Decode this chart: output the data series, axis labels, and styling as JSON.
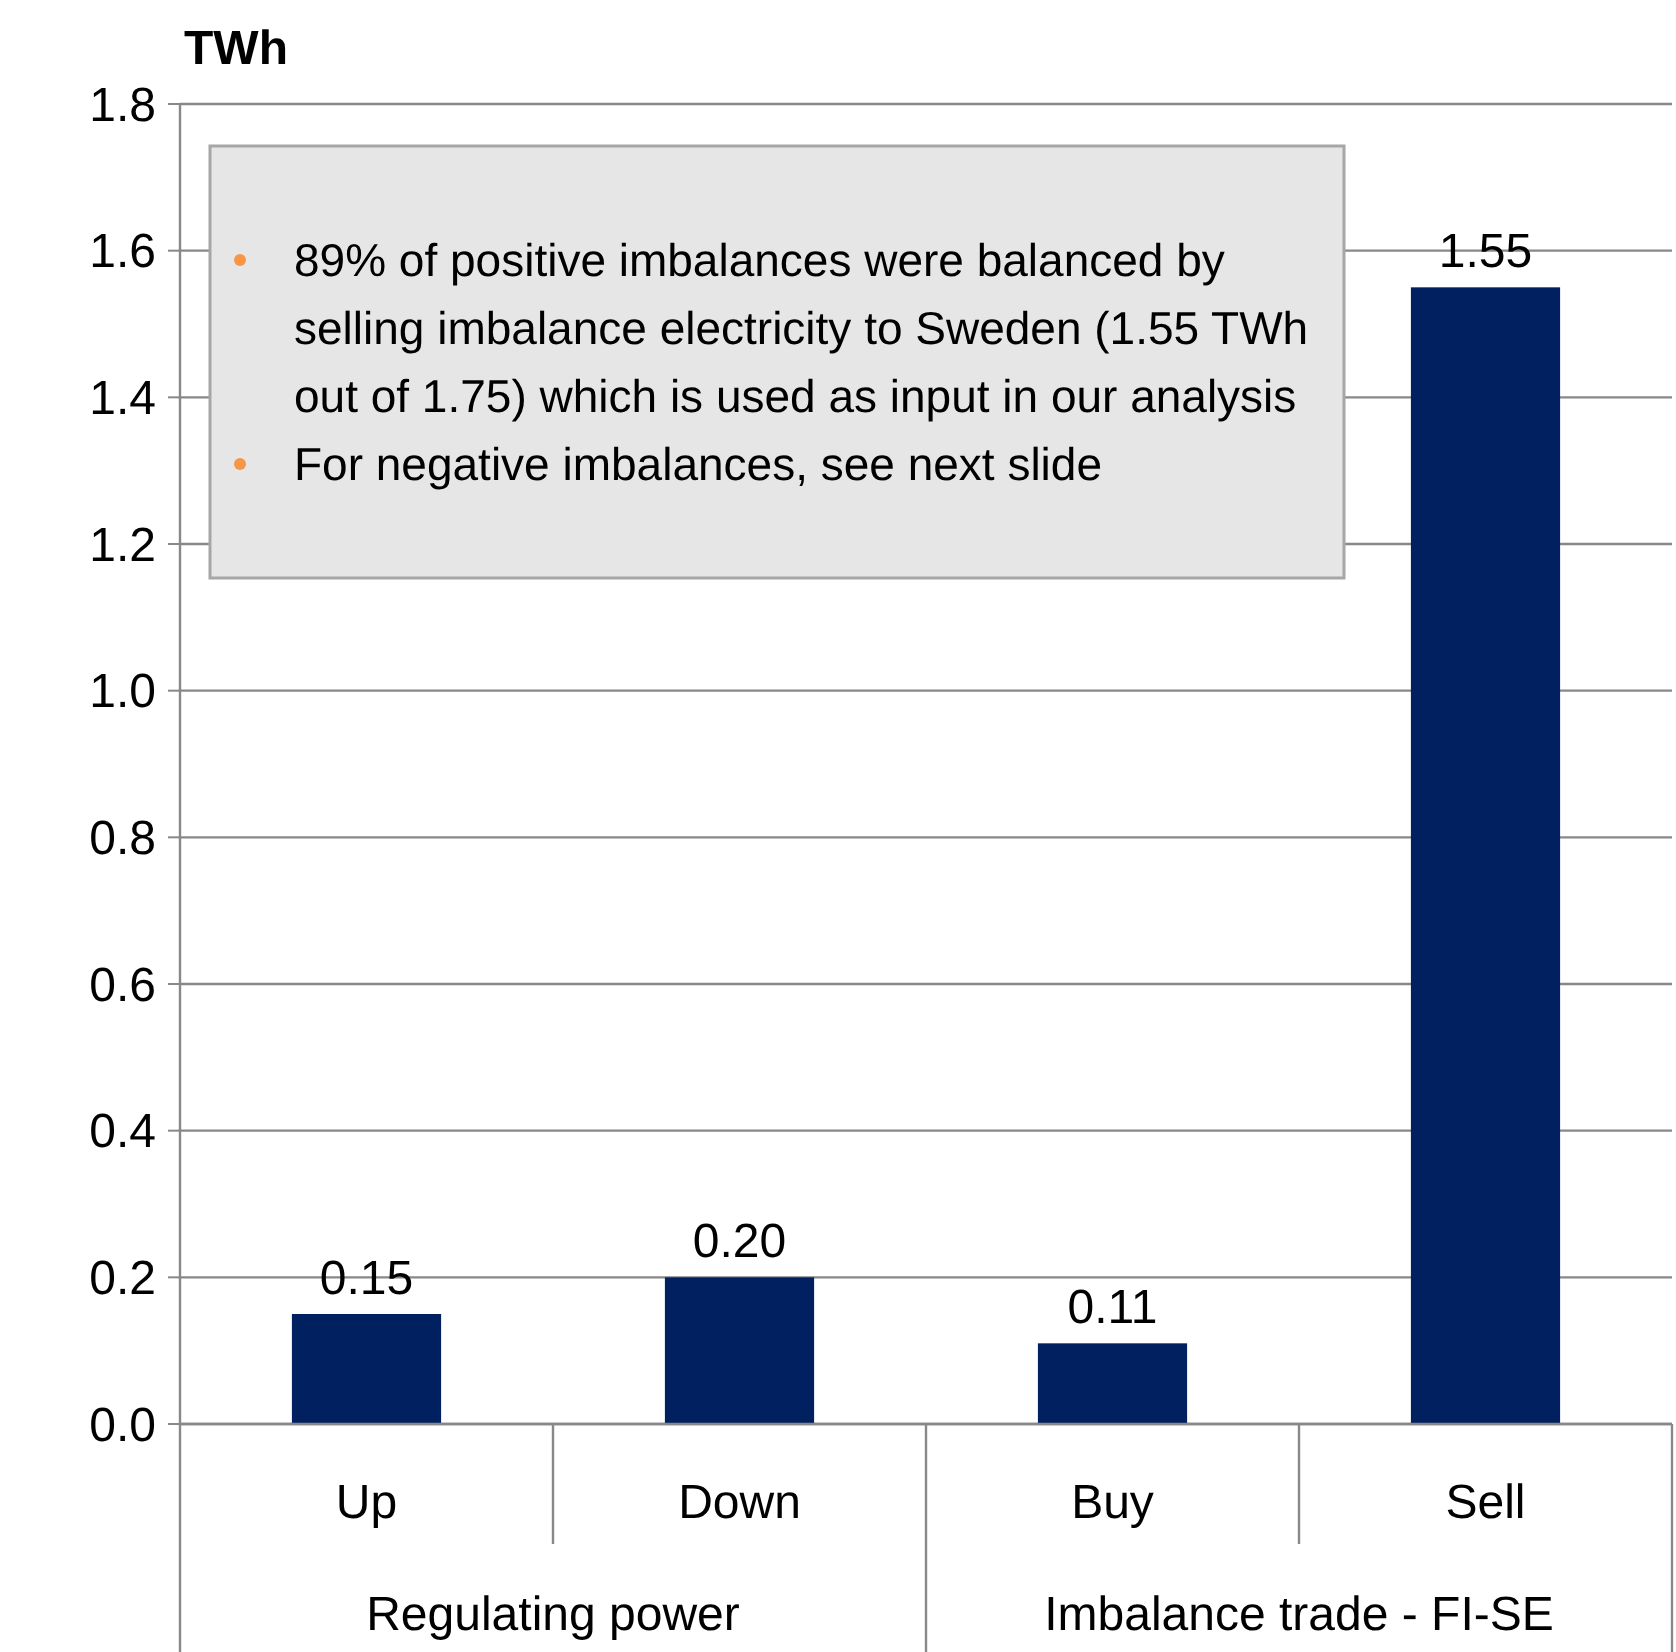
{
  "chart_data": {
    "type": "bar",
    "ylabel": "TWh",
    "categories": [
      "Up",
      "Down",
      "Buy",
      "Sell"
    ],
    "values": [
      0.15,
      0.2,
      0.11,
      1.55
    ],
    "value_labels": [
      "0.15",
      "0.20",
      "0.11",
      "1.55"
    ],
    "color": "#002060",
    "ylim": [
      0,
      1.8
    ],
    "yticks": [
      {
        "value": 0,
        "label": "0.0"
      },
      0.2,
      0.4,
      0.6,
      0.8,
      {
        "value": 1,
        "label": "1.0"
      },
      1.2,
      1.4,
      1.6,
      1.8
    ],
    "grid": "y",
    "annotations": [
      "89% of positive imbalances were balanced by selling imbalance electricity to Sweden (1.55 TWh out of 1.75) which is used as input in our analysis",
      "For negative imbalances, see next slide",
      "Regulating power",
      "Imbalance trade - FI-SE"
    ]
  }
}
